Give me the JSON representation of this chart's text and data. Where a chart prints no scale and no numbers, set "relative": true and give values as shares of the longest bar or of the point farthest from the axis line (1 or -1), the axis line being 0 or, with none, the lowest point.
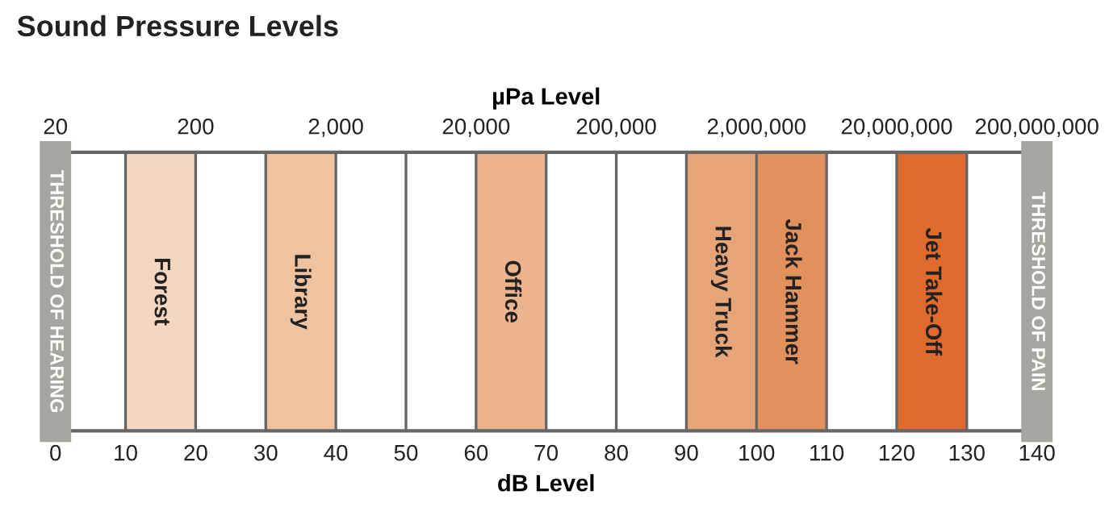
{
  "chart_data": {
    "type": "bar",
    "relative": true,
    "title": "Sound Pressure Levels",
    "xlabel": "dB Level",
    "x2label": "µPa Level",
    "xlim": [
      0,
      140
    ],
    "xticks": [
      0,
      10,
      20,
      30,
      40,
      50,
      60,
      70,
      80,
      90,
      100,
      110,
      120,
      130,
      140
    ],
    "x2lim": [
      20,
      200000000
    ],
    "log": "x2",
    "x2ticks": [
      {
        "value": 20,
        "label": "20"
      },
      {
        "value": 200,
        "label": "200"
      },
      {
        "value": 2000,
        "label": "2,000"
      },
      {
        "value": 20000,
        "label": "20,000"
      },
      {
        "value": 200000,
        "label": "200,000"
      },
      {
        "value": 2000000,
        "label": "2,000,000"
      },
      {
        "value": 20000000,
        "label": "20,000,000"
      },
      {
        "value": 200000000,
        "label": "200,000,000"
      }
    ],
    "grid": "x",
    "series": [
      {
        "name": "Forest",
        "color": "#f5d7c0",
        "x": [
          15
        ],
        "values": [
          1
        ]
      },
      {
        "name": "Library",
        "color": "#efc3a0",
        "x": [
          35
        ],
        "values": [
          1
        ]
      },
      {
        "name": "Office",
        "color": "#ebb48d",
        "x": [
          65
        ],
        "values": [
          1
        ]
      },
      {
        "name": "Heavy Truck",
        "color": "#e6a579",
        "x": [
          95
        ],
        "values": [
          1
        ]
      },
      {
        "name": "Jack Hammer",
        "color": "#e3915c",
        "x": [
          105
        ],
        "values": [
          1
        ]
      },
      {
        "name": "Jet Take-Off",
        "color": "#e0692c",
        "x": [
          125
        ],
        "values": [
          1
        ]
      }
    ],
    "ref_lines": [
      {
        "axis": "x",
        "value": 0,
        "label": "THRESHOLD OF HEARING",
        "color": "#a7a59f"
      },
      {
        "axis": "x",
        "value": 140,
        "label": "THRESHOLD OF PAIN",
        "color": "#a7a59f"
      }
    ]
  }
}
